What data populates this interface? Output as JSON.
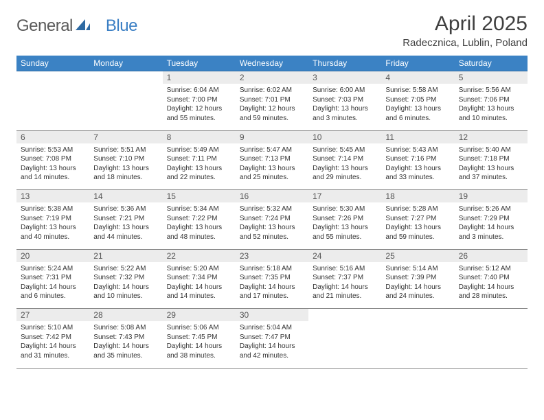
{
  "logo": {
    "part1": "General",
    "part2": "Blue",
    "icon_color": "#2e6aa3"
  },
  "header": {
    "month_title": "April 2025",
    "location": "Radecznica, Lublin, Poland"
  },
  "colors": {
    "header_bg": "#3b82c4",
    "header_text": "#ffffff",
    "daynum_bg": "#ececec",
    "daynum_text": "#555555",
    "body_text": "#333333",
    "rule": "#888888",
    "logo_gray": "#5a5a5a",
    "logo_blue": "#3b7fc4"
  },
  "weekdays": [
    "Sunday",
    "Monday",
    "Tuesday",
    "Wednesday",
    "Thursday",
    "Friday",
    "Saturday"
  ],
  "weeks": [
    {
      "nums": [
        "",
        "",
        "1",
        "2",
        "3",
        "4",
        "5"
      ],
      "cells": [
        null,
        null,
        {
          "sunrise": "Sunrise: 6:04 AM",
          "sunset": "Sunset: 7:00 PM",
          "daylight": "Daylight: 12 hours and 55 minutes."
        },
        {
          "sunrise": "Sunrise: 6:02 AM",
          "sunset": "Sunset: 7:01 PM",
          "daylight": "Daylight: 12 hours and 59 minutes."
        },
        {
          "sunrise": "Sunrise: 6:00 AM",
          "sunset": "Sunset: 7:03 PM",
          "daylight": "Daylight: 13 hours and 3 minutes."
        },
        {
          "sunrise": "Sunrise: 5:58 AM",
          "sunset": "Sunset: 7:05 PM",
          "daylight": "Daylight: 13 hours and 6 minutes."
        },
        {
          "sunrise": "Sunrise: 5:56 AM",
          "sunset": "Sunset: 7:06 PM",
          "daylight": "Daylight: 13 hours and 10 minutes."
        }
      ]
    },
    {
      "nums": [
        "6",
        "7",
        "8",
        "9",
        "10",
        "11",
        "12"
      ],
      "cells": [
        {
          "sunrise": "Sunrise: 5:53 AM",
          "sunset": "Sunset: 7:08 PM",
          "daylight": "Daylight: 13 hours and 14 minutes."
        },
        {
          "sunrise": "Sunrise: 5:51 AM",
          "sunset": "Sunset: 7:10 PM",
          "daylight": "Daylight: 13 hours and 18 minutes."
        },
        {
          "sunrise": "Sunrise: 5:49 AM",
          "sunset": "Sunset: 7:11 PM",
          "daylight": "Daylight: 13 hours and 22 minutes."
        },
        {
          "sunrise": "Sunrise: 5:47 AM",
          "sunset": "Sunset: 7:13 PM",
          "daylight": "Daylight: 13 hours and 25 minutes."
        },
        {
          "sunrise": "Sunrise: 5:45 AM",
          "sunset": "Sunset: 7:14 PM",
          "daylight": "Daylight: 13 hours and 29 minutes."
        },
        {
          "sunrise": "Sunrise: 5:43 AM",
          "sunset": "Sunset: 7:16 PM",
          "daylight": "Daylight: 13 hours and 33 minutes."
        },
        {
          "sunrise": "Sunrise: 5:40 AM",
          "sunset": "Sunset: 7:18 PM",
          "daylight": "Daylight: 13 hours and 37 minutes."
        }
      ]
    },
    {
      "nums": [
        "13",
        "14",
        "15",
        "16",
        "17",
        "18",
        "19"
      ],
      "cells": [
        {
          "sunrise": "Sunrise: 5:38 AM",
          "sunset": "Sunset: 7:19 PM",
          "daylight": "Daylight: 13 hours and 40 minutes."
        },
        {
          "sunrise": "Sunrise: 5:36 AM",
          "sunset": "Sunset: 7:21 PM",
          "daylight": "Daylight: 13 hours and 44 minutes."
        },
        {
          "sunrise": "Sunrise: 5:34 AM",
          "sunset": "Sunset: 7:22 PM",
          "daylight": "Daylight: 13 hours and 48 minutes."
        },
        {
          "sunrise": "Sunrise: 5:32 AM",
          "sunset": "Sunset: 7:24 PM",
          "daylight": "Daylight: 13 hours and 52 minutes."
        },
        {
          "sunrise": "Sunrise: 5:30 AM",
          "sunset": "Sunset: 7:26 PM",
          "daylight": "Daylight: 13 hours and 55 minutes."
        },
        {
          "sunrise": "Sunrise: 5:28 AM",
          "sunset": "Sunset: 7:27 PM",
          "daylight": "Daylight: 13 hours and 59 minutes."
        },
        {
          "sunrise": "Sunrise: 5:26 AM",
          "sunset": "Sunset: 7:29 PM",
          "daylight": "Daylight: 14 hours and 3 minutes."
        }
      ]
    },
    {
      "nums": [
        "20",
        "21",
        "22",
        "23",
        "24",
        "25",
        "26"
      ],
      "cells": [
        {
          "sunrise": "Sunrise: 5:24 AM",
          "sunset": "Sunset: 7:31 PM",
          "daylight": "Daylight: 14 hours and 6 minutes."
        },
        {
          "sunrise": "Sunrise: 5:22 AM",
          "sunset": "Sunset: 7:32 PM",
          "daylight": "Daylight: 14 hours and 10 minutes."
        },
        {
          "sunrise": "Sunrise: 5:20 AM",
          "sunset": "Sunset: 7:34 PM",
          "daylight": "Daylight: 14 hours and 14 minutes."
        },
        {
          "sunrise": "Sunrise: 5:18 AM",
          "sunset": "Sunset: 7:35 PM",
          "daylight": "Daylight: 14 hours and 17 minutes."
        },
        {
          "sunrise": "Sunrise: 5:16 AM",
          "sunset": "Sunset: 7:37 PM",
          "daylight": "Daylight: 14 hours and 21 minutes."
        },
        {
          "sunrise": "Sunrise: 5:14 AM",
          "sunset": "Sunset: 7:39 PM",
          "daylight": "Daylight: 14 hours and 24 minutes."
        },
        {
          "sunrise": "Sunrise: 5:12 AM",
          "sunset": "Sunset: 7:40 PM",
          "daylight": "Daylight: 14 hours and 28 minutes."
        }
      ]
    },
    {
      "nums": [
        "27",
        "28",
        "29",
        "30",
        "",
        "",
        ""
      ],
      "cells": [
        {
          "sunrise": "Sunrise: 5:10 AM",
          "sunset": "Sunset: 7:42 PM",
          "daylight": "Daylight: 14 hours and 31 minutes."
        },
        {
          "sunrise": "Sunrise: 5:08 AM",
          "sunset": "Sunset: 7:43 PM",
          "daylight": "Daylight: 14 hours and 35 minutes."
        },
        {
          "sunrise": "Sunrise: 5:06 AM",
          "sunset": "Sunset: 7:45 PM",
          "daylight": "Daylight: 14 hours and 38 minutes."
        },
        {
          "sunrise": "Sunrise: 5:04 AM",
          "sunset": "Sunset: 7:47 PM",
          "daylight": "Daylight: 14 hours and 42 minutes."
        },
        null,
        null,
        null
      ]
    }
  ]
}
